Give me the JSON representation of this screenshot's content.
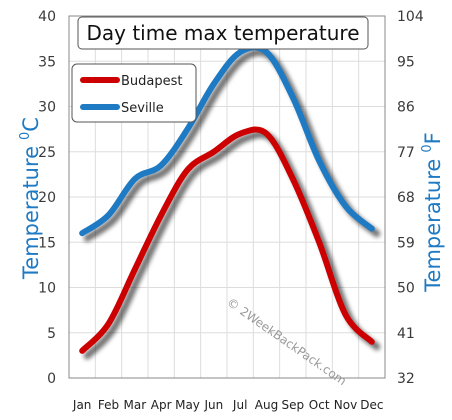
{
  "chart_data": {
    "type": "line",
    "title": "Day time max temperature",
    "categories": [
      "Jan",
      "Feb",
      "Mar",
      "Apr",
      "May",
      "Jun",
      "Jul",
      "Aug",
      "Sep",
      "Oct",
      "Nov",
      "Dec"
    ],
    "series": [
      {
        "name": "Budapest",
        "color": "#cc0000",
        "values": [
          3,
          6,
          12,
          18,
          23,
          25,
          27,
          27,
          22,
          15,
          7,
          4
        ]
      },
      {
        "name": "Seville",
        "color": "#1f7ac4",
        "values": [
          16,
          18,
          22,
          23.5,
          27.5,
          32.5,
          36,
          36,
          31,
          24,
          19,
          16.5
        ]
      }
    ],
    "y_left": {
      "label": "Temperature",
      "unit": "C",
      "ticks": [
        "0",
        "5",
        "10",
        "15",
        "20",
        "25",
        "30",
        "35",
        "40"
      ],
      "range": [
        0,
        40
      ]
    },
    "y_right": {
      "label": "Temperature",
      "unit": "F",
      "ticks": [
        "32",
        "41",
        "50",
        "59",
        "68",
        "77",
        "86",
        "95",
        "104"
      ],
      "range": [
        32,
        104
      ]
    },
    "grid": true,
    "legend_position": "top-left",
    "watermark": "© 2WeekBackPack.com"
  }
}
